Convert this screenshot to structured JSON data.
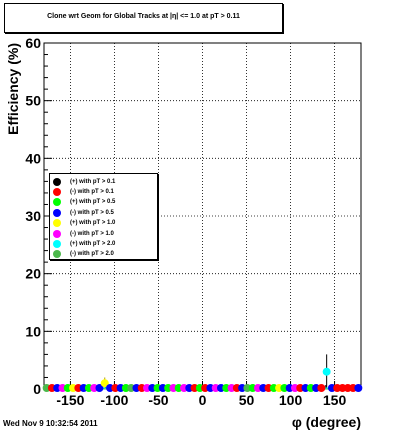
{
  "title": "Clone wrt Geom for Global Tracks at |η| <= 1.0 at pT > 0.11",
  "footer_date": "Wed Nov  9 10:32:54 2011",
  "chart_data": {
    "type": "scatter",
    "xlabel": "φ (degree)",
    "ylabel": "Efficiency (%)",
    "xlim": [
      -180,
      180
    ],
    "ylim": [
      0,
      60
    ],
    "x_ticks": [
      -150,
      -100,
      -50,
      0,
      50,
      100,
      150
    ],
    "y_ticks": [
      0,
      10,
      20,
      30,
      40,
      50,
      60
    ],
    "grid": true,
    "legend_position": "left",
    "series": [
      {
        "name": "(+) with pT > 0.1",
        "color": "#000000"
      },
      {
        "name": "(-) with pT > 0.1",
        "color": "#ff0000"
      },
      {
        "name": "(+) with pT > 0.5",
        "color": "#00ff00"
      },
      {
        "name": "(-) with pT > 0.5",
        "color": "#0000ff"
      },
      {
        "name": "(+) with pT > 1.0",
        "color": "#ffff00"
      },
      {
        "name": "(-) with pT > 1.0",
        "color": "#ff00ff"
      },
      {
        "name": "(+) with pT > 2.0",
        "color": "#00ffff"
      },
      {
        "name": "(-) with pT > 2.0",
        "color": "#4cb84c"
      }
    ],
    "points": [
      {
        "x": -177,
        "y": 0,
        "s": 7
      },
      {
        "x": -171,
        "y": 0,
        "s": 1
      },
      {
        "x": -165,
        "y": 0,
        "s": 3
      },
      {
        "x": -159,
        "y": 0,
        "s": 5
      },
      {
        "x": -153,
        "y": 0,
        "s": 2
      },
      {
        "x": -147,
        "y": 0,
        "s": 4
      },
      {
        "x": -141,
        "y": 0,
        "s": 1
      },
      {
        "x": -135,
        "y": 0,
        "s": 3
      },
      {
        "x": -129,
        "y": 0,
        "s": 2
      },
      {
        "x": -123,
        "y": 0,
        "s": 5
      },
      {
        "x": -117,
        "y": 0,
        "s": 3
      },
      {
        "x": -111,
        "y": 1.0,
        "s": 4
      },
      {
        "x": -105,
        "y": 0,
        "s": 3
      },
      {
        "x": -99,
        "y": 0,
        "s": 1
      },
      {
        "x": -93,
        "y": 0,
        "s": 3
      },
      {
        "x": -87,
        "y": 0,
        "s": 2
      },
      {
        "x": -81,
        "y": 0,
        "s": 7
      },
      {
        "x": -75,
        "y": 0,
        "s": 3
      },
      {
        "x": -69,
        "y": 0,
        "s": 1
      },
      {
        "x": -63,
        "y": 0,
        "s": 5
      },
      {
        "x": -57,
        "y": 0,
        "s": 3
      },
      {
        "x": -51,
        "y": 0,
        "s": 2
      },
      {
        "x": -45,
        "y": 0,
        "s": 3
      },
      {
        "x": -39,
        "y": 0,
        "s": 2
      },
      {
        "x": -33,
        "y": 0,
        "s": 5
      },
      {
        "x": -27,
        "y": 0,
        "s": 2
      },
      {
        "x": -21,
        "y": 0,
        "s": 5
      },
      {
        "x": -15,
        "y": 0,
        "s": 3
      },
      {
        "x": -9,
        "y": 0,
        "s": 1
      },
      {
        "x": -3,
        "y": 0,
        "s": 2
      },
      {
        "x": 3,
        "y": 0,
        "s": 1
      },
      {
        "x": 9,
        "y": 0,
        "s": 3
      },
      {
        "x": 15,
        "y": 0,
        "s": 5
      },
      {
        "x": 21,
        "y": 0,
        "s": 3
      },
      {
        "x": 27,
        "y": 0,
        "s": 2
      },
      {
        "x": 33,
        "y": 0,
        "s": 5
      },
      {
        "x": 39,
        "y": 0,
        "s": 1
      },
      {
        "x": 45,
        "y": 0,
        "s": 3
      },
      {
        "x": 51,
        "y": 0,
        "s": 7
      },
      {
        "x": 57,
        "y": 0,
        "s": 2
      },
      {
        "x": 63,
        "y": 0,
        "s": 5
      },
      {
        "x": 69,
        "y": 0,
        "s": 3
      },
      {
        "x": 75,
        "y": 0,
        "s": 1
      },
      {
        "x": 81,
        "y": 0,
        "s": 2
      },
      {
        "x": 87,
        "y": 0,
        "s": 4
      },
      {
        "x": 93,
        "y": 0,
        "s": 2
      },
      {
        "x": 99,
        "y": 0,
        "s": 3
      },
      {
        "x": 105,
        "y": 0,
        "s": 5
      },
      {
        "x": 111,
        "y": 0,
        "s": 1
      },
      {
        "x": 117,
        "y": 0,
        "s": 3
      },
      {
        "x": 123,
        "y": 0,
        "s": 2
      },
      {
        "x": 129,
        "y": 0,
        "s": 3
      },
      {
        "x": 135,
        "y": 0,
        "s": 1
      },
      {
        "x": 141,
        "y": 3.0,
        "s": 6
      },
      {
        "x": 147,
        "y": 0,
        "s": 3
      },
      {
        "x": 153,
        "y": 0,
        "s": 1
      },
      {
        "x": 159,
        "y": 0,
        "s": 1
      },
      {
        "x": 165,
        "y": 0,
        "s": 1
      },
      {
        "x": 171,
        "y": 0,
        "s": 1
      },
      {
        "x": 177,
        "y": 0,
        "s": 3
      }
    ],
    "error_bars": [
      {
        "x": -111,
        "y": 1.0,
        "low": 0,
        "high": 2.0,
        "s": 4
      },
      {
        "x": 141,
        "y": 3.0,
        "low": 0,
        "high": 6.0,
        "s": 6
      }
    ]
  }
}
